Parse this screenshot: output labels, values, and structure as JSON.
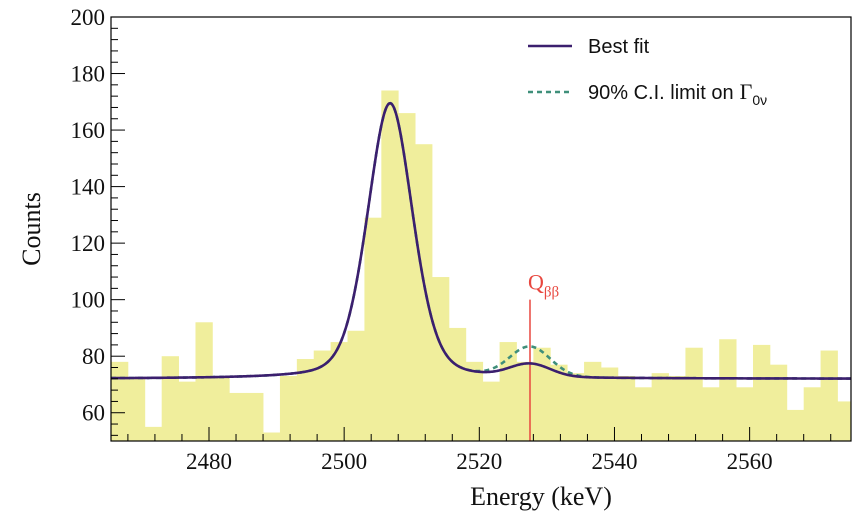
{
  "chart_data": {
    "type": "bar",
    "xlabel": "Energy (keV)",
    "ylabel": "Counts",
    "xlim": [
      2465.5,
      2575
    ],
    "ylim": [
      50,
      200
    ],
    "xticks": [
      2480,
      2500,
      2520,
      2540,
      2560
    ],
    "yticks": [
      60,
      80,
      100,
      120,
      140,
      160,
      180,
      200
    ],
    "bin_width": 2.5,
    "bin_start": 2465.5,
    "counts": [
      78,
      72,
      55,
      80,
      71,
      92,
      73,
      67,
      67,
      53,
      73,
      79,
      82,
      85,
      89,
      129,
      174,
      166,
      155,
      108,
      90,
      78,
      71,
      85,
      78,
      83,
      77,
      74,
      78,
      76,
      73,
      69,
      74,
      73,
      83,
      69,
      86,
      69,
      84,
      77,
      61,
      69,
      82,
      64,
      58,
      68,
      55,
      78
    ],
    "hist_color": "#f0ee9c",
    "fit": {
      "baseline": 72,
      "peak_center": 2506.8,
      "peak_amplitude": 97.5,
      "peak_sigma": 3.4,
      "peak_lorentz_gamma": 3.8,
      "peak_lorentz_fraction": 0.3,
      "qbb_sigma": 3.0,
      "best_fit_qbb_amplitude": 4.5,
      "limit_qbb_amplitude": 10.5
    },
    "series": [
      {
        "name": "Best fit",
        "color": "#3b1f6e",
        "style": "solid"
      },
      {
        "name": "90% C.I. limit on",
        "color": "#3f8f7a",
        "style": "dashed"
      }
    ],
    "legend_location": "top-right",
    "qbb": {
      "value": 2527.5,
      "label_main": "Q",
      "label_sub": "ββ",
      "color": "#e8473f"
    },
    "legend_symbol": {
      "main": "Γ",
      "sub": "0ν"
    }
  }
}
